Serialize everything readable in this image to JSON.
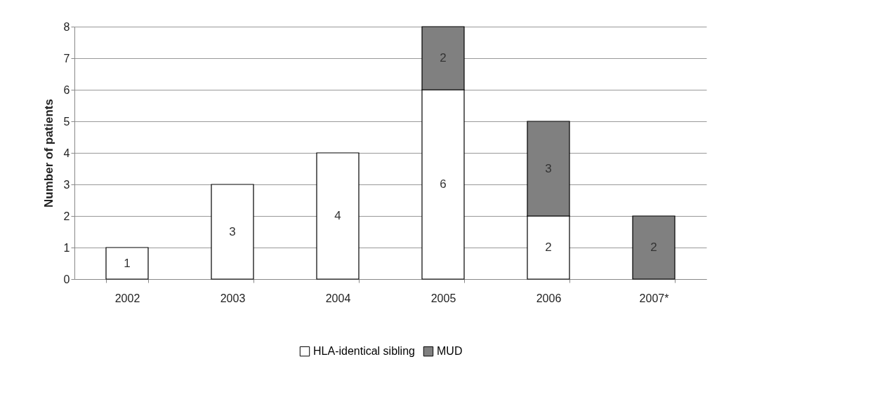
{
  "chart_data": {
    "type": "bar",
    "ylabel": "Number of patients",
    "categories": [
      "2002",
      "2003",
      "2004",
      "2005",
      "2006",
      "2007*"
    ],
    "series": [
      {
        "name": "HLA-identical sibling",
        "color": "#ffffff",
        "values": [
          1,
          3,
          4,
          6,
          2,
          null
        ]
      },
      {
        "name": "MUD",
        "color": "#808080",
        "values": [
          null,
          null,
          null,
          2,
          3,
          2
        ]
      }
    ],
    "stacked": true,
    "ylim": [
      0,
      8
    ],
    "yticks": [
      0,
      1,
      2,
      3,
      4,
      5,
      6,
      7,
      8
    ],
    "grid": "y",
    "legend": "bottom",
    "data_labels": true
  }
}
